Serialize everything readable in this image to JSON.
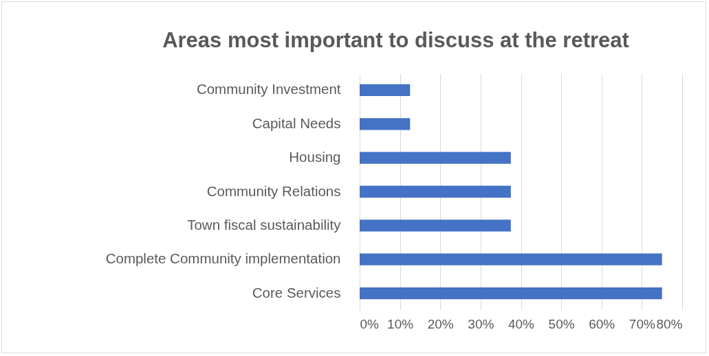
{
  "chart_data": {
    "type": "bar",
    "orientation": "horizontal",
    "title": "Areas most important to discuss at the retreat",
    "categories": [
      "Community Investment",
      "Capital Needs",
      "Housing",
      "Community Relations",
      "Town fiscal sustainability",
      "Complete Community implementation",
      "Core Services"
    ],
    "values": [
      12.5,
      12.5,
      37.5,
      37.5,
      37.5,
      75,
      75
    ],
    "color": "#4472c4",
    "xlim": [
      0,
      80
    ],
    "xticks": [
      {
        "value": 0,
        "label": "0%"
      },
      {
        "value": 10,
        "label": "10%"
      },
      {
        "value": 20,
        "label": "20%"
      },
      {
        "value": 30,
        "label": "30%"
      },
      {
        "value": 40,
        "label": "40%"
      },
      {
        "value": 50,
        "label": "50%"
      },
      {
        "value": 60,
        "label": "60%"
      },
      {
        "value": 70,
        "label": "70%"
      },
      {
        "value": 80,
        "label": "80%"
      }
    ],
    "grid": "x"
  }
}
